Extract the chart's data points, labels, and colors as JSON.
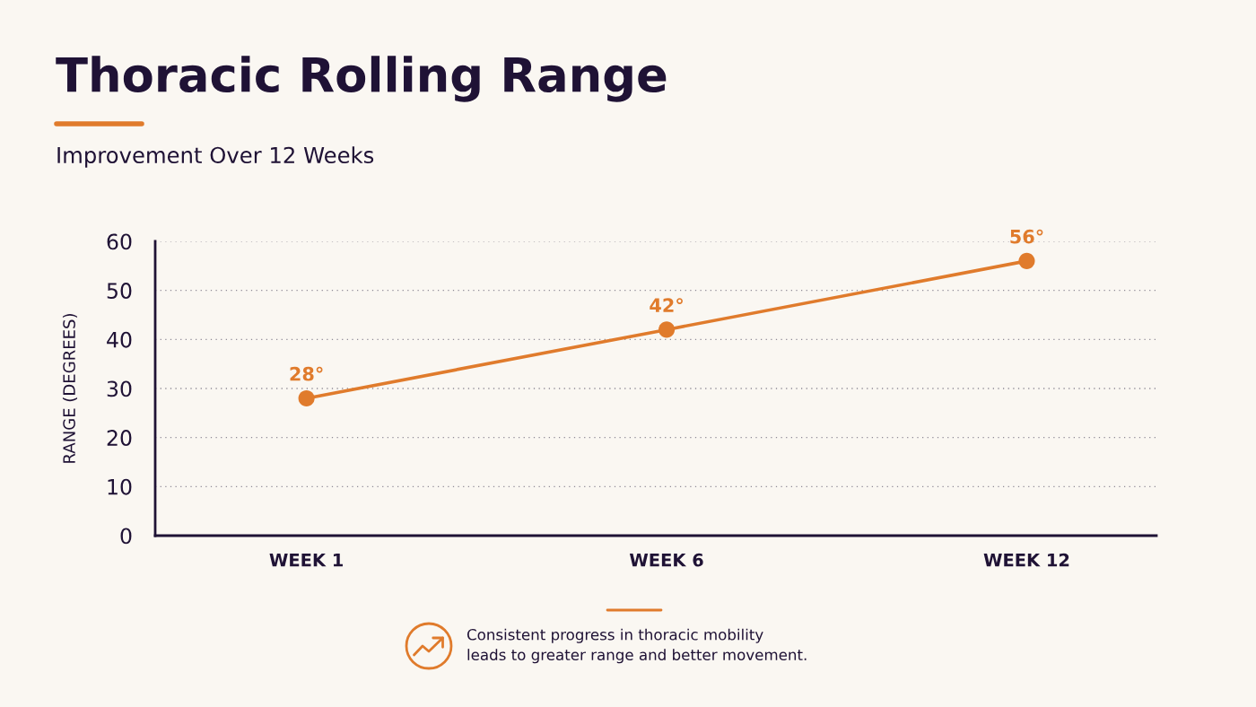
{
  "chart_data": {
    "type": "line",
    "title": "Thoracic Rolling Range",
    "subtitle": "Improvement Over 12 Weeks",
    "ylabel": "RANGE (DEGREES)",
    "categories": [
      "WEEK 1",
      "WEEK 6",
      "WEEK 12"
    ],
    "values": [
      28,
      42,
      56
    ],
    "color": "#e07b2c",
    "value_labels": [
      "28°",
      "42°",
      "56°"
    ],
    "ylim": [
      0,
      60
    ],
    "yticks": [
      0,
      10,
      20,
      30,
      40,
      50,
      60
    ],
    "grid": "y",
    "marker": "circle",
    "line_style": "solid",
    "annotations": [
      "Consistent progress in thoracic mobility\nleads to greater range and better movement."
    ]
  }
}
